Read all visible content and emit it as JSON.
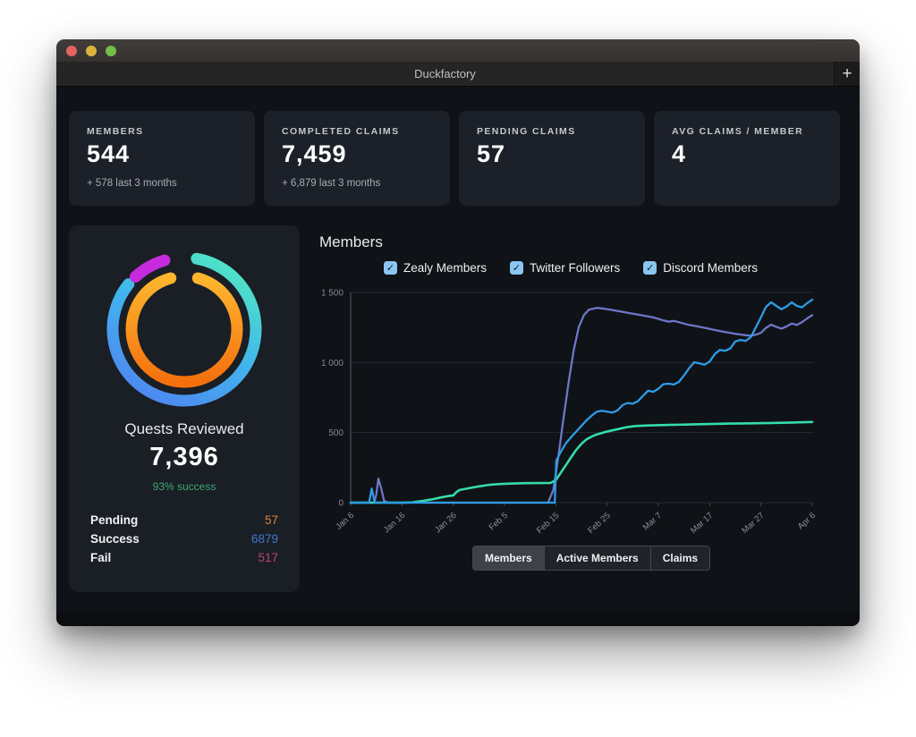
{
  "window": {
    "title": "Duckfactory",
    "new_tab": "+",
    "traffic_lights": [
      "#e4645f",
      "#ddb23c",
      "#71bf47"
    ]
  },
  "icons": {
    "check": "✓"
  },
  "stats": [
    {
      "label": "MEMBERS",
      "value": "544",
      "sub": "+ 578 last 3 months"
    },
    {
      "label": "COMPLETED CLAIMS",
      "value": "7,459",
      "sub": "+ 6,879 last 3 months"
    },
    {
      "label": "PENDING CLAIMS",
      "value": "57",
      "sub": ""
    },
    {
      "label": "AVG CLAIMS / MEMBER",
      "value": "4",
      "sub": ""
    }
  ],
  "quests": {
    "title": "Quests Reviewed",
    "total": "7,396",
    "success_note": "93% success",
    "success_color": "#3ca873",
    "rows": [
      {
        "label": "Pending",
        "value": "57",
        "color": "#e0823c"
      },
      {
        "label": "Success",
        "value": "6879",
        "color": "#4377cd"
      },
      {
        "label": "Fail",
        "value": "517",
        "color": "#bb4573"
      }
    ]
  },
  "donut": {
    "rings": [
      {
        "radius": 80,
        "width": 13,
        "segments": [
          {
            "from": 10,
            "to": 309,
            "colors": [
              "#4fe6c4",
              "#41b4ee",
              "#4f86f0"
            ],
            "grad": [
              80,
              0,
              20,
              100
            ]
          },
          {
            "from": 317,
            "to": 344,
            "colors": [
              "#c52bdc"
            ]
          }
        ]
      },
      {
        "radius": 59,
        "width": 13,
        "segments": [
          {
            "from": 15,
            "to": 345,
            "colors": [
              "#fdb62e",
              "#f4700d"
            ],
            "grad": [
              50,
              0,
              50,
              100
            ]
          }
        ]
      }
    ]
  },
  "members_panel": {
    "title": "Members",
    "checkbox_color": "#8ac6f0",
    "legend": [
      {
        "label": "Zealy Members",
        "checked": true
      },
      {
        "label": "Twitter Followers",
        "checked": true
      },
      {
        "label": "Discord Members",
        "checked": true
      }
    ],
    "tabs": [
      {
        "label": "Members",
        "active": true
      },
      {
        "label": "Active Members",
        "active": false
      },
      {
        "label": "Claims",
        "active": false
      }
    ]
  },
  "chart_data": {
    "type": "line",
    "title": "Members",
    "xlabel": "",
    "ylabel": "",
    "grid": true,
    "legend_position": "top",
    "ylim": [
      0,
      1500
    ],
    "x_max_day": 90,
    "y_ticks": [
      {
        "v": 0,
        "label": "0"
      },
      {
        "v": 500,
        "label": "500"
      },
      {
        "v": 1000,
        "label": "1 000"
      },
      {
        "v": 1500,
        "label": "1 500"
      }
    ],
    "x_ticks": [
      {
        "day": 0,
        "label": "Jan 6"
      },
      {
        "day": 10,
        "label": "Jan 16"
      },
      {
        "day": 20,
        "label": "Jan 26"
      },
      {
        "day": 30,
        "label": "Feb 5"
      },
      {
        "day": 40,
        "label": "Feb 15"
      },
      {
        "day": 50,
        "label": "Feb 25"
      },
      {
        "day": 60,
        "label": "Mar 7"
      },
      {
        "day": 70,
        "label": "Mar 17"
      },
      {
        "day": 80,
        "label": "Mar 27"
      },
      {
        "day": 90,
        "label": "Apr 6"
      }
    ],
    "series": [
      {
        "name": "Discord Members",
        "color": "#6e76c8",
        "points": [
          [
            0,
            0
          ],
          [
            4.6,
            0
          ],
          [
            5.0,
            60
          ],
          [
            5.4,
            172
          ],
          [
            6.0,
            95
          ],
          [
            6.5,
            15
          ],
          [
            7.2,
            0
          ],
          [
            20,
            0
          ],
          [
            30,
            0
          ],
          [
            38.5,
            0
          ],
          [
            39.5,
            90
          ],
          [
            40.5,
            330
          ],
          [
            41.5,
            600
          ],
          [
            42.5,
            860
          ],
          [
            43.5,
            1090
          ],
          [
            44.5,
            1255
          ],
          [
            45.5,
            1340
          ],
          [
            46.5,
            1378
          ],
          [
            48,
            1390
          ],
          [
            49.5,
            1384
          ],
          [
            51,
            1375
          ],
          [
            53,
            1362
          ],
          [
            55,
            1348
          ],
          [
            57,
            1335
          ],
          [
            59,
            1322
          ],
          [
            60,
            1312
          ],
          [
            61,
            1300
          ],
          [
            62,
            1292
          ],
          [
            63,
            1297
          ],
          [
            64,
            1288
          ],
          [
            65,
            1278
          ],
          [
            66,
            1268
          ],
          [
            67,
            1262
          ],
          [
            68,
            1255
          ],
          [
            69,
            1248
          ],
          [
            70,
            1240
          ],
          [
            71,
            1232
          ],
          [
            72,
            1225
          ],
          [
            73,
            1218
          ],
          [
            74,
            1212
          ],
          [
            75,
            1205
          ],
          [
            76,
            1200
          ],
          [
            77,
            1195
          ],
          [
            78,
            1192
          ],
          [
            79,
            1198
          ],
          [
            80,
            1212
          ],
          [
            81,
            1248
          ],
          [
            82,
            1270
          ],
          [
            83,
            1255
          ],
          [
            84,
            1242
          ],
          [
            85,
            1258
          ],
          [
            86,
            1278
          ],
          [
            87,
            1268
          ],
          [
            88,
            1288
          ],
          [
            89,
            1315
          ],
          [
            90,
            1338
          ]
        ]
      },
      {
        "name": "Zealy Members",
        "color": "#35dcab",
        "points": [
          [
            0,
            0
          ],
          [
            10,
            0
          ],
          [
            12,
            2
          ],
          [
            14,
            12
          ],
          [
            16,
            25
          ],
          [
            18,
            40
          ],
          [
            19,
            47
          ],
          [
            20,
            52
          ],
          [
            20.6,
            75
          ],
          [
            21.2,
            90
          ],
          [
            23,
            103
          ],
          [
            25,
            116
          ],
          [
            27,
            127
          ],
          [
            29,
            133
          ],
          [
            31,
            136
          ],
          [
            34,
            139
          ],
          [
            39,
            141
          ],
          [
            40,
            160
          ],
          [
            41,
            215
          ],
          [
            42,
            270
          ],
          [
            43,
            325
          ],
          [
            44,
            378
          ],
          [
            45,
            420
          ],
          [
            46,
            452
          ],
          [
            47,
            472
          ],
          [
            48,
            487
          ],
          [
            49.5,
            503
          ],
          [
            51,
            516
          ],
          [
            52.5,
            528
          ],
          [
            54,
            540
          ],
          [
            55.5,
            547
          ],
          [
            58,
            551
          ],
          [
            62,
            555
          ],
          [
            66,
            558
          ],
          [
            70,
            561
          ],
          [
            74,
            564
          ],
          [
            78,
            566
          ],
          [
            82,
            569
          ],
          [
            86,
            572
          ],
          [
            90,
            576
          ]
        ]
      },
      {
        "name": "Twitter Followers",
        "color": "#2d9ce8",
        "points": [
          [
            0,
            0
          ],
          [
            3.6,
            0
          ],
          [
            4.1,
            100
          ],
          [
            4.7,
            0
          ],
          [
            39.8,
            0
          ],
          [
            40.1,
            300
          ],
          [
            41,
            365
          ],
          [
            42,
            425
          ],
          [
            43,
            468
          ],
          [
            44,
            508
          ],
          [
            45,
            548
          ],
          [
            46,
            588
          ],
          [
            47,
            622
          ],
          [
            48,
            650
          ],
          [
            49,
            656
          ],
          [
            50,
            649
          ],
          [
            51,
            643
          ],
          [
            52,
            657
          ],
          [
            53,
            696
          ],
          [
            54,
            712
          ],
          [
            55,
            706
          ],
          [
            56,
            724
          ],
          [
            57,
            762
          ],
          [
            58,
            799
          ],
          [
            59,
            791
          ],
          [
            60,
            813
          ],
          [
            61,
            846
          ],
          [
            62,
            849
          ],
          [
            63,
            843
          ],
          [
            64,
            862
          ],
          [
            65,
            908
          ],
          [
            66,
            960
          ],
          [
            67,
            1002
          ],
          [
            68,
            994
          ],
          [
            69,
            984
          ],
          [
            70,
            1007
          ],
          [
            71,
            1060
          ],
          [
            72,
            1090
          ],
          [
            73,
            1084
          ],
          [
            74,
            1100
          ],
          [
            75,
            1150
          ],
          [
            76,
            1162
          ],
          [
            77,
            1154
          ],
          [
            78,
            1180
          ],
          [
            79,
            1250
          ],
          [
            80,
            1324
          ],
          [
            81,
            1398
          ],
          [
            82,
            1430
          ],
          [
            83,
            1404
          ],
          [
            84,
            1380
          ],
          [
            85,
            1400
          ],
          [
            86,
            1430
          ],
          [
            87,
            1404
          ],
          [
            88,
            1394
          ],
          [
            89,
            1424
          ],
          [
            90,
            1448
          ]
        ]
      }
    ]
  }
}
